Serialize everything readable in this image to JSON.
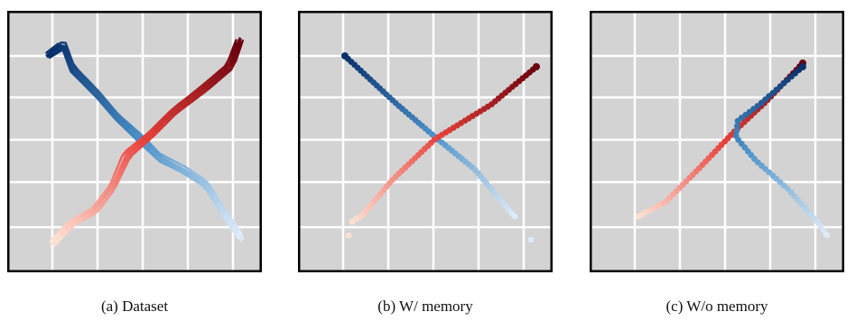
{
  "panels": [
    {
      "caption": "(a) Dataset",
      "style": "lines"
    },
    {
      "caption": "(b) W/ memory",
      "style": "dots"
    },
    {
      "caption": "(c) W/o memory",
      "style": "dots"
    }
  ],
  "colors": {
    "background": "#d3d3d3",
    "grid": "#ffffff",
    "border": "#000000",
    "blue_dark": "#08306b",
    "blue_light": "#deebf7",
    "red_dark": "#67000d",
    "red_light": "#fee0d2"
  }
}
